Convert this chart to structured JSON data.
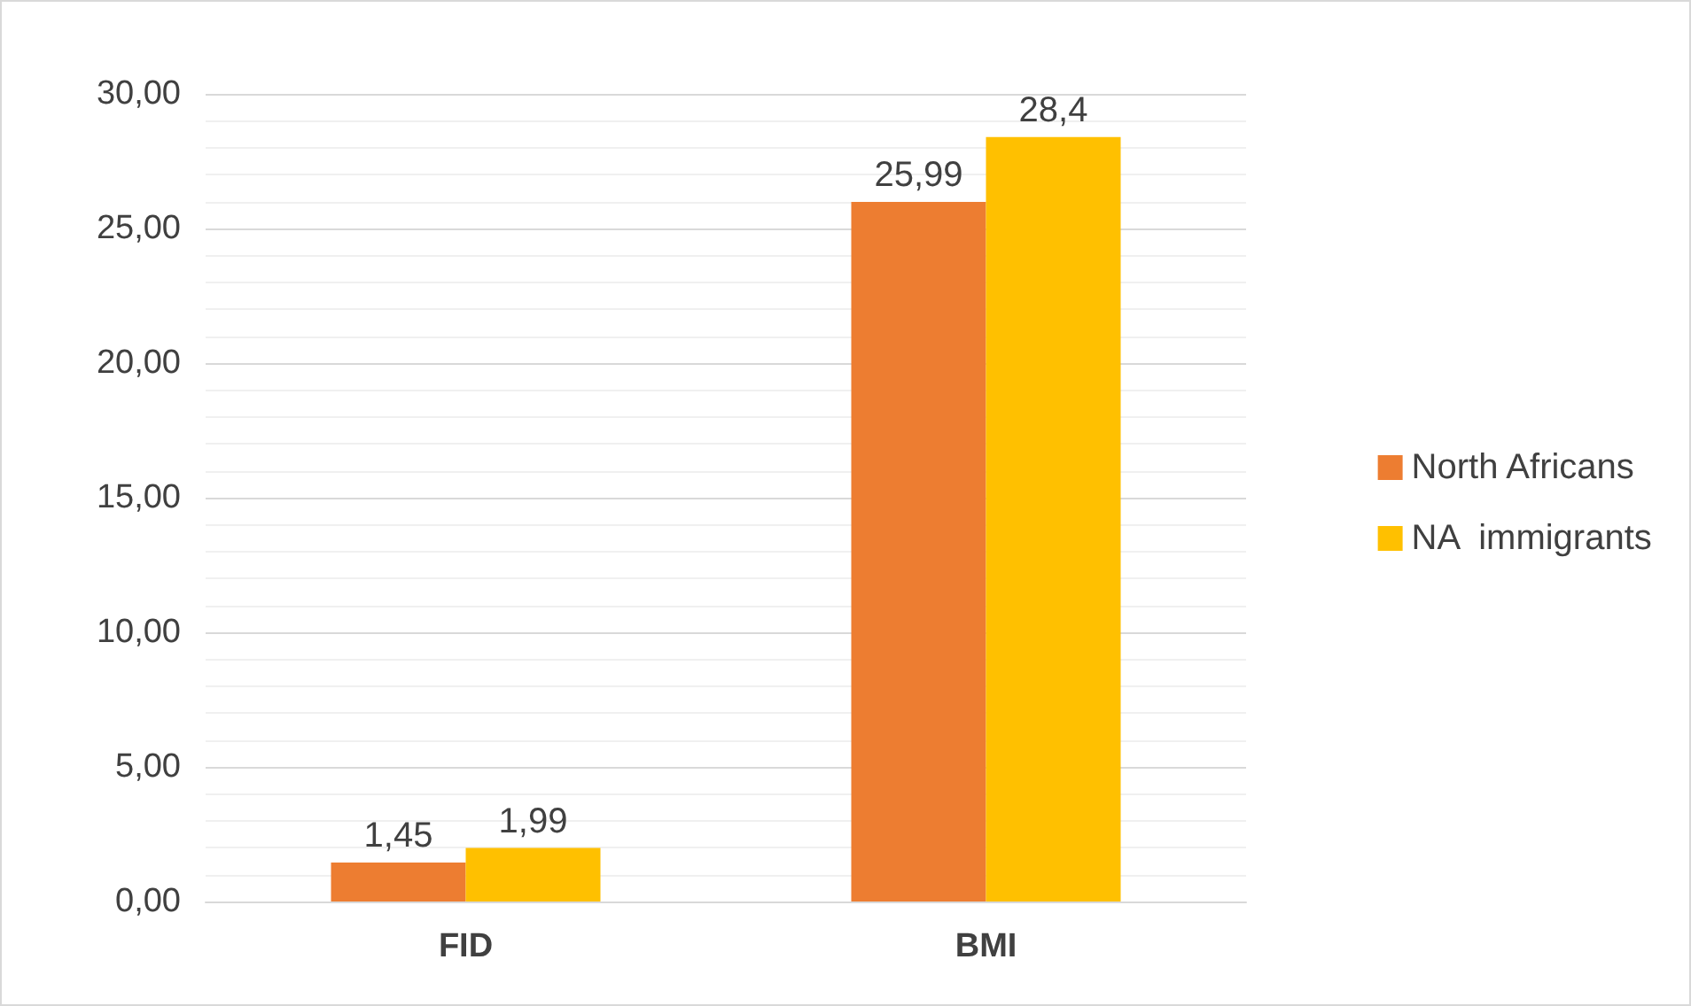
{
  "chart_data": {
    "type": "bar",
    "categories": [
      "FID",
      "BMI"
    ],
    "series": [
      {
        "name": "North Africans",
        "color": "#ed7d31",
        "values": [
          1.45,
          25.99
        ],
        "value_labels": [
          "1,45",
          "25,99"
        ]
      },
      {
        "name": "NA  immigrants",
        "color": "#ffc000",
        "values": [
          1.99,
          28.4
        ],
        "value_labels": [
          "1,99",
          "28,4"
        ]
      }
    ],
    "ylim": [
      0,
      30
    ],
    "yticks": [
      {
        "value": 0,
        "label": "0,00"
      },
      {
        "value": 5,
        "label": "5,00"
      },
      {
        "value": 10,
        "label": "10,00"
      },
      {
        "value": 15,
        "label": "15,00"
      },
      {
        "value": 20,
        "label": "20,00"
      },
      {
        "value": 25,
        "label": "25,00"
      },
      {
        "value": 30,
        "label": "30,00"
      }
    ],
    "grid": "y",
    "legend": "right"
  }
}
